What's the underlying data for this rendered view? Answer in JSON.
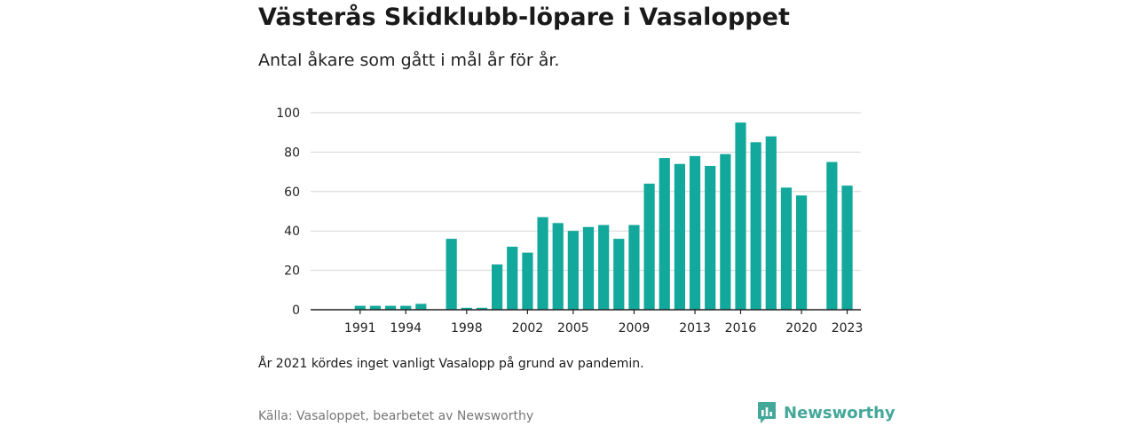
{
  "title": "Västerås Skidklubb-löpare i Vasaloppet",
  "subtitle": "Antal åkare som gått i mål år för år.",
  "note": "År 2021 kördes inget vanligt Vasalopp på grund av pandemin.",
  "source": "Källa: Vasaloppet, bearbetet av Newsworthy",
  "brand": {
    "name": "Newsworthy",
    "icon": "newsworthy-logo-icon"
  },
  "colors": {
    "bar": "#12a89c",
    "grid": "#d5d5d5",
    "axis": "#222222",
    "brand": "#43a89a"
  },
  "chart_data": {
    "type": "bar",
    "title": "Västerås Skidklubb-löpare i Vasaloppet",
    "subtitle": "Antal åkare som gått i mål år för år.",
    "xlabel": "",
    "ylabel": "",
    "ylim": [
      0,
      100
    ],
    "yticks": [
      0,
      20,
      40,
      60,
      80,
      100
    ],
    "xticks": [
      1991,
      1994,
      1998,
      2002,
      2005,
      2009,
      2013,
      2016,
      2020,
      2023
    ],
    "grid": true,
    "categories": [
      1990,
      1991,
      1992,
      1993,
      1994,
      1995,
      1996,
      1997,
      1998,
      1999,
      2000,
      2001,
      2002,
      2003,
      2004,
      2005,
      2006,
      2007,
      2008,
      2009,
      2010,
      2011,
      2012,
      2013,
      2014,
      2015,
      2016,
      2017,
      2018,
      2019,
      2020,
      2021,
      2022,
      2023
    ],
    "values": [
      0,
      2,
      2,
      2,
      2,
      3,
      0,
      36,
      1,
      1,
      23,
      32,
      29,
      47,
      44,
      40,
      42,
      43,
      36,
      43,
      64,
      77,
      74,
      78,
      73,
      79,
      95,
      85,
      88,
      62,
      58,
      null,
      75,
      63
    ]
  }
}
